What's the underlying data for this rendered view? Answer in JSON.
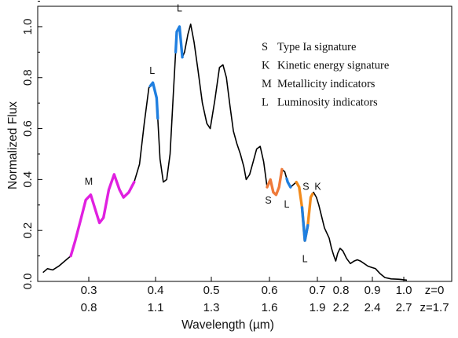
{
  "chart_data": {
    "type": "line",
    "ylabel": "Normalized Flux",
    "xlabel": "Wavelength (µm)",
    "ylim": [
      0,
      1.08
    ],
    "grid": false,
    "x_axis_rows": [
      {
        "label": "z=0",
        "ticks": [
          "0.3",
          "0.4",
          "0.5",
          "0.6",
          "0.7",
          "0.8",
          "0.9",
          "1.0"
        ]
      },
      {
        "label": "z=1.7",
        "ticks": [
          "0.8",
          "1.1",
          "1.3",
          "1.6",
          "1.9",
          "2.2",
          "2.4",
          "2.7"
        ]
      }
    ],
    "x_tick_values_z0": [
      0.3,
      0.4,
      0.5,
      0.6,
      0.7,
      0.8,
      0.9,
      1.0
    ],
    "y_ticks": [
      0.0,
      0.2,
      0.4,
      0.6,
      0.8,
      1.0
    ],
    "y_tick_labels": [
      "0.0",
      "0.2",
      "0.4",
      "0.6",
      "0.8",
      "1.0"
    ],
    "series": [
      {
        "color": "#000000",
        "points": [
          [
            0.239,
            0.035
          ],
          [
            0.245,
            0.05
          ],
          [
            0.252,
            0.045
          ],
          [
            0.26,
            0.06
          ],
          [
            0.268,
            0.08
          ],
          [
            0.276,
            0.1
          ],
          [
            0.282,
            0.16
          ],
          [
            0.29,
            0.25
          ],
          [
            0.296,
            0.32
          ],
          [
            0.303,
            0.34
          ],
          [
            0.31,
            0.28
          ],
          [
            0.316,
            0.23
          ],
          [
            0.322,
            0.25
          ],
          [
            0.33,
            0.36
          ],
          [
            0.338,
            0.42
          ],
          [
            0.346,
            0.36
          ],
          [
            0.352,
            0.33
          ],
          [
            0.36,
            0.35
          ],
          [
            0.368,
            0.39
          ],
          [
            0.376,
            0.46
          ],
          [
            0.383,
            0.62
          ],
          [
            0.39,
            0.76
          ],
          [
            0.396,
            0.78
          ],
          [
            0.402,
            0.72
          ],
          [
            0.408,
            0.48
          ],
          [
            0.414,
            0.39
          ],
          [
            0.42,
            0.4
          ],
          [
            0.426,
            0.5
          ],
          [
            0.432,
            0.74
          ],
          [
            0.438,
            0.98
          ],
          [
            0.443,
            1.0
          ],
          [
            0.448,
            0.88
          ],
          [
            0.452,
            0.9
          ],
          [
            0.458,
            0.97
          ],
          [
            0.463,
            1.01
          ],
          [
            0.469,
            0.94
          ],
          [
            0.476,
            0.83
          ],
          [
            0.484,
            0.7
          ],
          [
            0.492,
            0.62
          ],
          [
            0.498,
            0.6
          ],
          [
            0.506,
            0.71
          ],
          [
            0.514,
            0.84
          ],
          [
            0.52,
            0.85
          ],
          [
            0.526,
            0.8
          ],
          [
            0.532,
            0.69
          ],
          [
            0.538,
            0.59
          ],
          [
            0.544,
            0.54
          ],
          [
            0.55,
            0.5
          ],
          [
            0.556,
            0.45
          ],
          [
            0.56,
            0.4
          ],
          [
            0.566,
            0.42
          ],
          [
            0.572,
            0.47
          ],
          [
            0.578,
            0.52
          ],
          [
            0.584,
            0.53
          ],
          [
            0.59,
            0.47
          ],
          [
            0.596,
            0.37
          ],
          [
            0.602,
            0.4
          ],
          [
            0.608,
            0.35
          ],
          [
            0.614,
            0.34
          ],
          [
            0.62,
            0.37
          ],
          [
            0.626,
            0.44
          ],
          [
            0.632,
            0.43
          ],
          [
            0.638,
            0.39
          ],
          [
            0.644,
            0.37
          ],
          [
            0.65,
            0.38
          ],
          [
            0.656,
            0.39
          ],
          [
            0.662,
            0.37
          ],
          [
            0.668,
            0.29
          ],
          [
            0.674,
            0.16
          ],
          [
            0.68,
            0.22
          ],
          [
            0.686,
            0.33
          ],
          [
            0.692,
            0.35
          ],
          [
            0.698,
            0.33
          ],
          [
            0.706,
            0.3
          ],
          [
            0.714,
            0.27
          ],
          [
            0.722,
            0.24
          ],
          [
            0.73,
            0.21
          ],
          [
            0.74,
            0.19
          ],
          [
            0.75,
            0.17
          ],
          [
            0.76,
            0.13
          ],
          [
            0.77,
            0.1
          ],
          [
            0.778,
            0.08
          ],
          [
            0.786,
            0.11
          ],
          [
            0.796,
            0.13
          ],
          [
            0.806,
            0.12
          ],
          [
            0.818,
            0.09
          ],
          [
            0.83,
            0.07
          ],
          [
            0.842,
            0.08
          ],
          [
            0.852,
            0.085
          ],
          [
            0.862,
            0.08
          ],
          [
            0.874,
            0.07
          ],
          [
            0.886,
            0.06
          ],
          [
            0.898,
            0.055
          ],
          [
            0.91,
            0.05
          ],
          [
            0.925,
            0.03
          ],
          [
            0.94,
            0.015
          ],
          [
            0.96,
            0.01
          ],
          [
            0.99,
            0.008
          ],
          [
            1.01,
            0.005
          ]
        ]
      }
    ],
    "highlights": [
      {
        "color": "#e020e0",
        "from": 0.276,
        "to": 0.368
      },
      {
        "color": "#1f7fe0",
        "from": 0.392,
        "to": 0.404
      },
      {
        "color": "#1f7fe0",
        "from": 0.436,
        "to": 0.448
      },
      {
        "color": "#ef7a3a",
        "from": 0.596,
        "to": 0.626
      },
      {
        "color": "#1f7fe0",
        "from": 0.636,
        "to": 0.644
      },
      {
        "color": "#f28a1a",
        "from": 0.656,
        "to": 0.69
      },
      {
        "color": "#1f7fe0",
        "from": 0.668,
        "to": 0.68
      }
    ],
    "annotations": [
      {
        "text": "M",
        "x": 0.3,
        "y": 0.38
      },
      {
        "text": "L",
        "x": 0.395,
        "y": 0.815
      },
      {
        "text": "L",
        "x": 0.443,
        "y": 1.06
      },
      {
        "text": "S",
        "x": 0.598,
        "y": 0.305
      },
      {
        "text": "L",
        "x": 0.636,
        "y": 0.29
      },
      {
        "text": "S",
        "x": 0.676,
        "y": 0.36
      },
      {
        "text": "K",
        "x": 0.702,
        "y": 0.36
      },
      {
        "text": "L",
        "x": 0.674,
        "y": 0.075
      }
    ],
    "legend": {
      "placement": "top-right",
      "entries": [
        {
          "symbol": "S",
          "text": "Type Ia signature"
        },
        {
          "symbol": "K",
          "text": "Kinetic energy signature"
        },
        {
          "symbol": "M",
          "text": "Metallicity indicators"
        },
        {
          "symbol": "L",
          "text": "Luminosity indicators"
        }
      ]
    }
  }
}
